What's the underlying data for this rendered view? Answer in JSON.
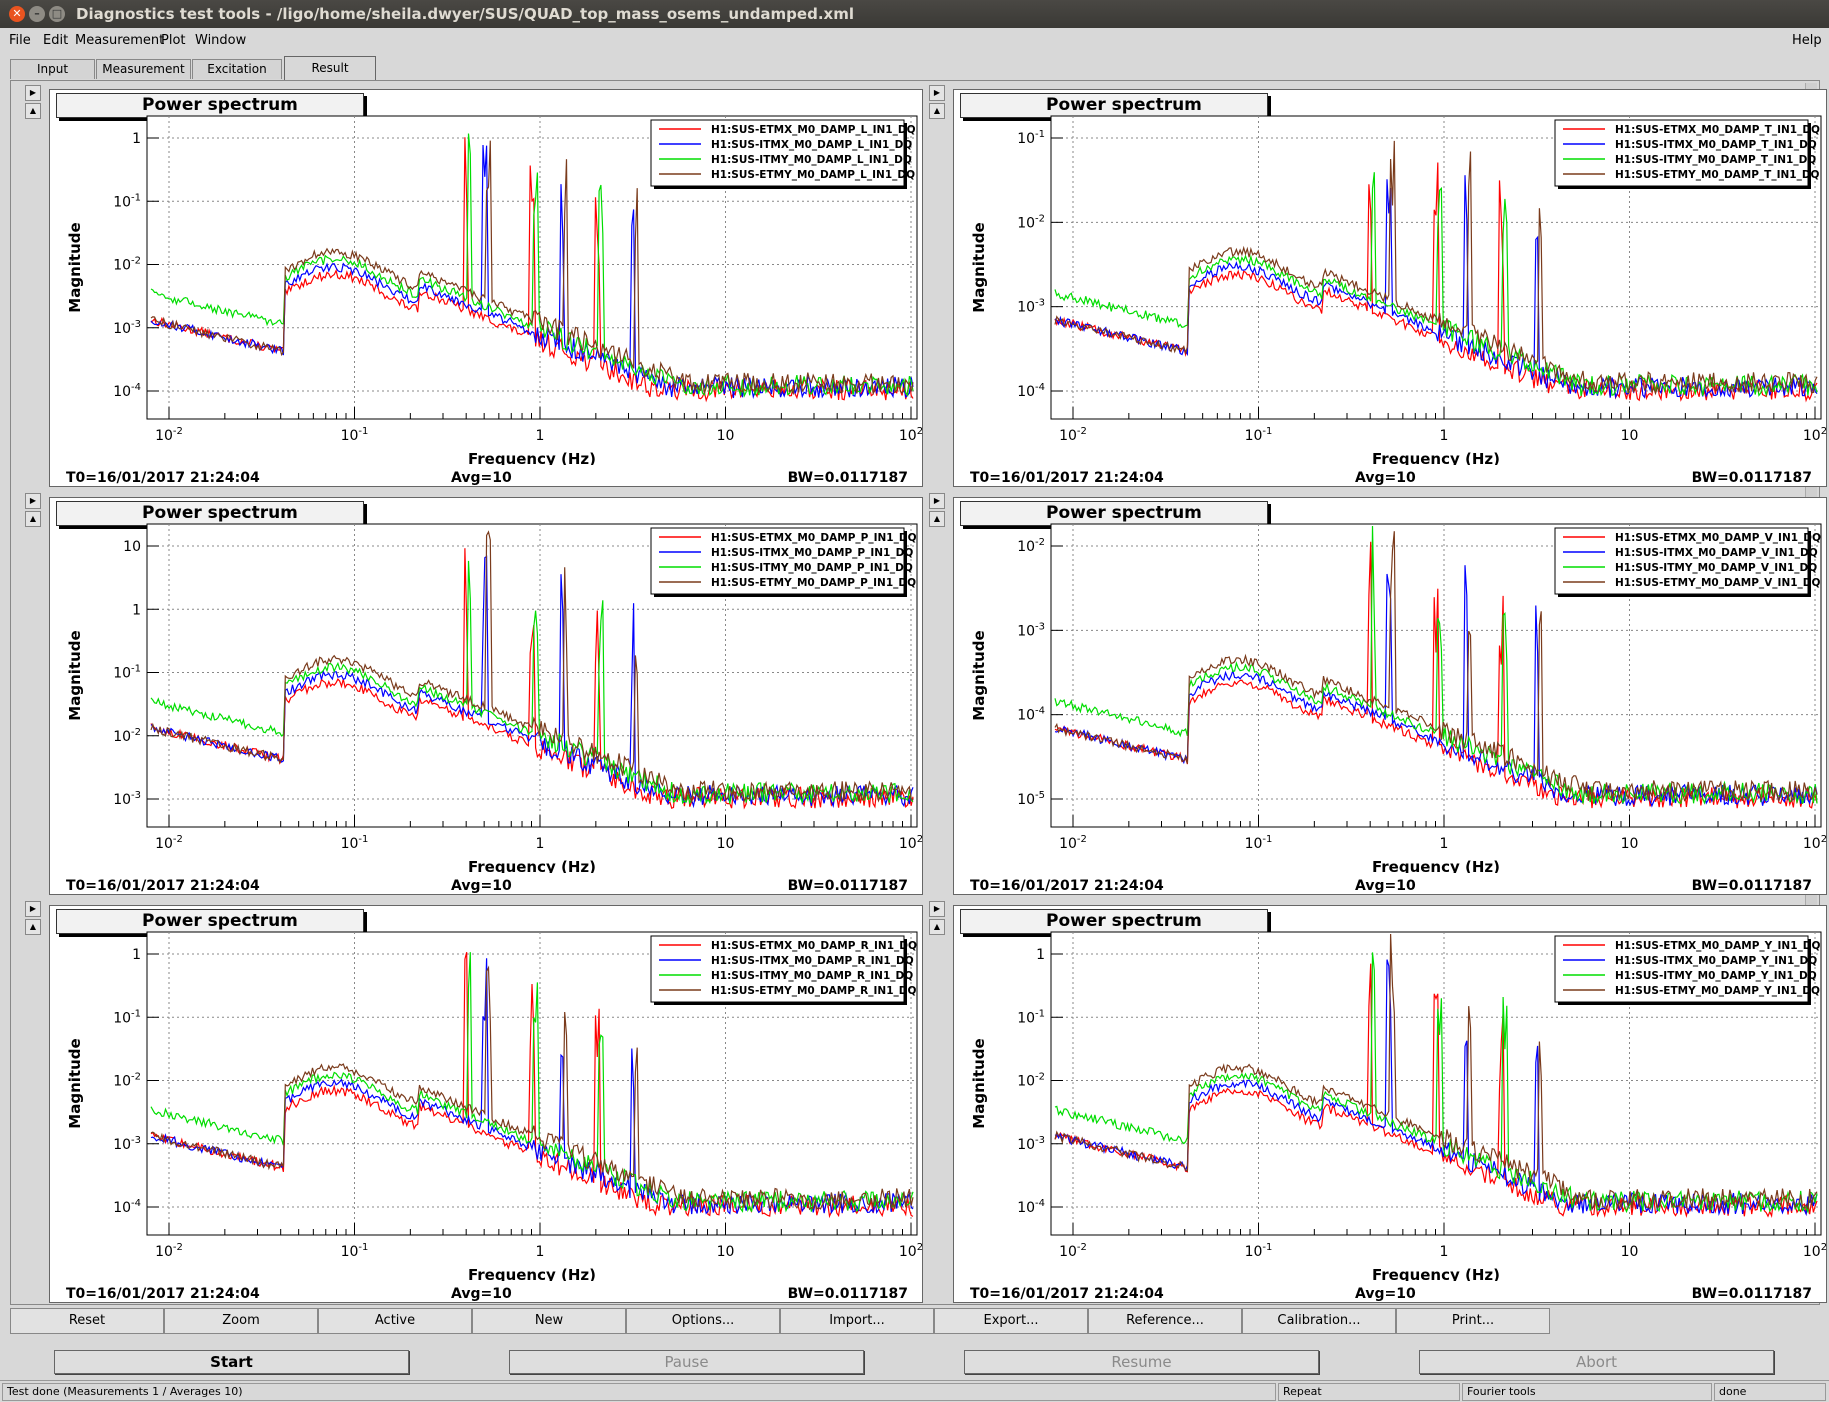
{
  "window": {
    "title": "Diagnostics test tools - /ligo/home/sheila.dwyer/SUS/QUAD_top_mass_osems_undamped.xml"
  },
  "menu": {
    "items": [
      "File",
      "Edit",
      "Measurement",
      "Plot",
      "Window"
    ],
    "help": "Help"
  },
  "tabs": [
    "Input",
    "Measurement",
    "Excitation",
    "Result"
  ],
  "active_tab": "Result",
  "panel_common": {
    "title": "Power spectrum",
    "xlabel": "Frequency (Hz)",
    "ylabel": "Magnitude",
    "t0": "T0=16/01/2017 21:24:04",
    "avg": "Avg=10",
    "bw": "BW=0.0117187",
    "xticks": [
      "10-2",
      "10-1",
      "1",
      "10",
      "102"
    ]
  },
  "series_colors": [
    "#ff0000",
    "#0000ff",
    "#00dd00",
    "#7a3b1c"
  ],
  "panels": [
    {
      "legend": [
        "H1:SUS-ETMX_M0_DAMP_L_IN1_DQ",
        "H1:SUS-ITMX_M0_DAMP_L_IN1_DQ",
        "H1:SUS-ITMY_M0_DAMP_L_IN1_DQ",
        "H1:SUS-ETMY_M0_DAMP_L_IN1_DQ"
      ],
      "yticks": [
        "10-4",
        "10-3",
        "10-2",
        "10-1",
        "1"
      ]
    },
    {
      "legend": [
        "H1:SUS-ETMX_M0_DAMP_T_IN1_DQ",
        "H1:SUS-ITMX_M0_DAMP_T_IN1_DQ",
        "H1:SUS-ITMY_M0_DAMP_T_IN1_DQ",
        "H1:SUS-ETMY_M0_DAMP_T_IN1_DQ"
      ],
      "yticks": [
        "10-4",
        "10-3",
        "10-2",
        "10-1"
      ]
    },
    {
      "legend": [
        "H1:SUS-ETMX_M0_DAMP_P_IN1_DQ",
        "H1:SUS-ITMX_M0_DAMP_P_IN1_DQ",
        "H1:SUS-ITMY_M0_DAMP_P_IN1_DQ",
        "H1:SUS-ETMY_M0_DAMP_P_IN1_DQ"
      ],
      "yticks": [
        "10-3",
        "10-2",
        "10-1",
        "1",
        "10"
      ]
    },
    {
      "legend": [
        "H1:SUS-ETMX_M0_DAMP_V_IN1_DQ",
        "H1:SUS-ITMX_M0_DAMP_V_IN1_DQ",
        "H1:SUS-ITMY_M0_DAMP_V_IN1_DQ",
        "H1:SUS-ETMY_M0_DAMP_V_IN1_DQ"
      ],
      "yticks": [
        "10-5",
        "10-4",
        "10-3",
        "10-2"
      ]
    },
    {
      "legend": [
        "H1:SUS-ETMX_M0_DAMP_R_IN1_DQ",
        "H1:SUS-ITMX_M0_DAMP_R_IN1_DQ",
        "H1:SUS-ITMY_M0_DAMP_R_IN1_DQ",
        "H1:SUS-ETMY_M0_DAMP_R_IN1_DQ"
      ],
      "yticks": [
        "10-4",
        "10-3",
        "10-2",
        "10-1",
        "1"
      ]
    },
    {
      "legend": [
        "H1:SUS-ETMX_M0_DAMP_Y_IN1_DQ",
        "H1:SUS-ITMX_M0_DAMP_Y_IN1_DQ",
        "H1:SUS-ITMY_M0_DAMP_Y_IN1_DQ",
        "H1:SUS-ETMY_M0_DAMP_Y_IN1_DQ"
      ],
      "yticks": [
        "10-4",
        "10-3",
        "10-2",
        "10-1",
        "1"
      ]
    }
  ],
  "toolbar": [
    "Reset",
    "Zoom",
    "Active",
    "New",
    "Options...",
    "Import...",
    "Export...",
    "Reference...",
    "Calibration...",
    "Print..."
  ],
  "actions": {
    "start": "Start",
    "pause": "Pause",
    "resume": "Resume",
    "abort": "Abort"
  },
  "status": {
    "message": "Test done (Measurements 1 / Averages 10)",
    "repeat": "Repeat",
    "tool": "Fourier tools",
    "state": "done"
  }
}
